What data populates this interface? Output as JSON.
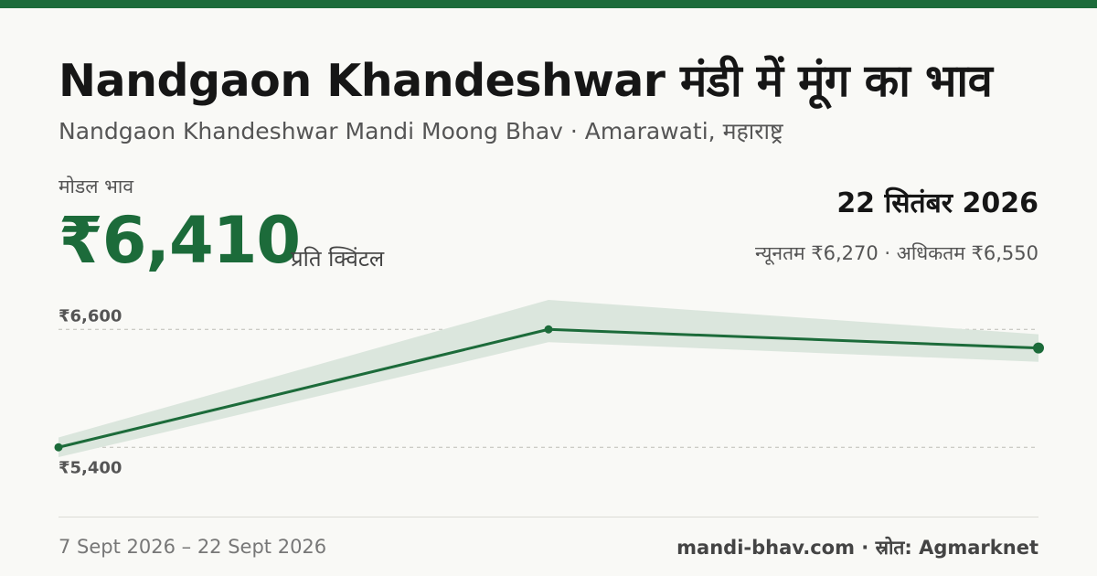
{
  "header": {
    "title": "Nandgaon Khandeshwar मंडी में मूंग का भाव",
    "subtitle": "Nandgaon Khandeshwar Mandi Moong Bhav · Amarawati, महाराष्ट्र"
  },
  "price": {
    "label": "मोडल भाव",
    "value": "₹6,410",
    "unit": "प्रति क्विंटल"
  },
  "latest": {
    "date": "22 सितंबर 2026",
    "minmax": "न्यूनतम ₹6,270 · अधिकतम ₹6,550"
  },
  "footer": {
    "range": "7 Sept 2026 – 22 Sept 2026",
    "source": "mandi-bhav.com · स्रोत: Agmarknet"
  },
  "colors": {
    "accent": "#1c6b3a",
    "band": "#dbe6dd",
    "gridline": "#bdbdb6"
  },
  "chart_data": {
    "type": "line",
    "x": [
      0,
      1,
      2
    ],
    "series": [
      {
        "values": [
          5400,
          6600,
          6410
        ]
      }
    ],
    "band": {
      "low": [
        5300,
        6470,
        6270
      ],
      "high": [
        5500,
        6900,
        6550
      ]
    },
    "yticks": [
      {
        "value": 6600,
        "label": "₹6,600"
      },
      {
        "value": 5400,
        "label": "₹5,400"
      }
    ],
    "ylim": [
      5300,
      6900
    ],
    "grid": true
  }
}
